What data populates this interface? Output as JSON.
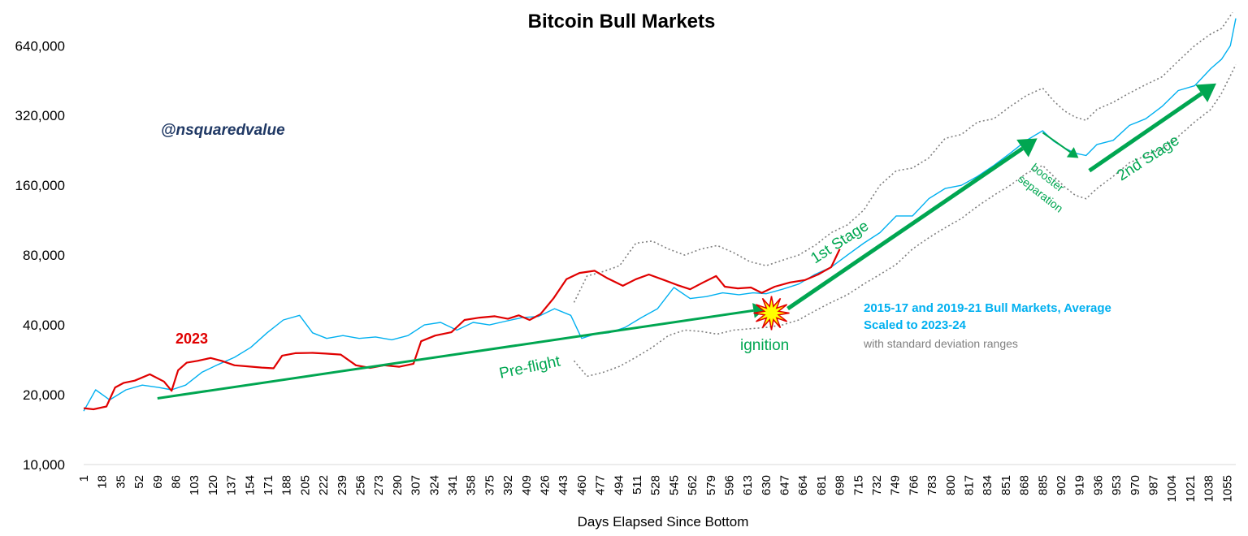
{
  "chart_data": {
    "type": "line",
    "title": "Bitcoin Bull Markets",
    "xlabel": "Days Elapsed Since Bottom",
    "ylabel": "",
    "yscale": "log2",
    "ylim": [
      10000,
      900000
    ],
    "xlim": [
      1,
      1063
    ],
    "y_ticks": [
      10000,
      20000,
      40000,
      80000,
      160000,
      320000,
      640000
    ],
    "y_tick_labels": [
      "10,000",
      "20,000",
      "40,000",
      "80,000",
      "160,000",
      "320,000",
      "640,000"
    ],
    "x_ticks": [
      1,
      18,
      35,
      52,
      69,
      86,
      103,
      120,
      137,
      154,
      171,
      188,
      205,
      222,
      239,
      256,
      273,
      290,
      307,
      324,
      341,
      358,
      375,
      392,
      409,
      426,
      443,
      460,
      477,
      494,
      511,
      528,
      545,
      562,
      579,
      596,
      613,
      630,
      647,
      664,
      681,
      698,
      715,
      732,
      749,
      766,
      783,
      800,
      817,
      834,
      851,
      868,
      885,
      902,
      919,
      936,
      953,
      970,
      987,
      1004,
      1021,
      1038,
      1055
    ],
    "series": [
      {
        "name": "2023",
        "color": "#e00000",
        "points": [
          [
            1,
            17500
          ],
          [
            10,
            17300
          ],
          [
            22,
            17800
          ],
          [
            30,
            21500
          ],
          [
            38,
            22500
          ],
          [
            48,
            23000
          ],
          [
            62,
            24500
          ],
          [
            75,
            22800
          ],
          [
            82,
            20800
          ],
          [
            88,
            25500
          ],
          [
            96,
            27500
          ],
          [
            106,
            28000
          ],
          [
            118,
            28800
          ],
          [
            128,
            28000
          ],
          [
            140,
            26800
          ],
          [
            152,
            26500
          ],
          [
            165,
            26200
          ],
          [
            176,
            26000
          ],
          [
            184,
            29500
          ],
          [
            196,
            30200
          ],
          [
            212,
            30300
          ],
          [
            224,
            30100
          ],
          [
            238,
            29800
          ],
          [
            252,
            26800
          ],
          [
            265,
            26100
          ],
          [
            278,
            26800
          ],
          [
            292,
            26400
          ],
          [
            305,
            27200
          ],
          [
            312,
            34000
          ],
          [
            325,
            36000
          ],
          [
            340,
            37200
          ],
          [
            352,
            42000
          ],
          [
            366,
            43000
          ],
          [
            380,
            43600
          ],
          [
            392,
            42500
          ],
          [
            402,
            44000
          ],
          [
            412,
            42000
          ],
          [
            422,
            44500
          ],
          [
            434,
            52000
          ],
          [
            446,
            63000
          ],
          [
            458,
            67000
          ],
          [
            472,
            68500
          ],
          [
            484,
            63500
          ],
          [
            498,
            59000
          ],
          [
            510,
            63000
          ],
          [
            522,
            66000
          ],
          [
            536,
            62500
          ],
          [
            548,
            59500
          ],
          [
            560,
            57000
          ],
          [
            572,
            61000
          ],
          [
            584,
            65000
          ],
          [
            592,
            58500
          ],
          [
            604,
            57500
          ],
          [
            616,
            58000
          ],
          [
            626,
            55000
          ],
          [
            638,
            58500
          ],
          [
            652,
            61000
          ],
          [
            666,
            62500
          ],
          [
            678,
            66000
          ],
          [
            690,
            71000
          ],
          [
            698,
            85000
          ]
        ]
      },
      {
        "name": "2015-17 and 2019-21 Bull Markets, Average Scaled to 2023-24",
        "color": "#00b0f0",
        "points": [
          [
            1,
            17000
          ],
          [
            12,
            21000
          ],
          [
            25,
            19000
          ],
          [
            40,
            21000
          ],
          [
            55,
            22000
          ],
          [
            70,
            21500
          ],
          [
            82,
            21000
          ],
          [
            95,
            22000
          ],
          [
            110,
            25000
          ],
          [
            125,
            27000
          ],
          [
            140,
            29000
          ],
          [
            155,
            32000
          ],
          [
            170,
            37000
          ],
          [
            185,
            42000
          ],
          [
            200,
            44000
          ],
          [
            212,
            37000
          ],
          [
            225,
            35000
          ],
          [
            240,
            36000
          ],
          [
            255,
            35000
          ],
          [
            270,
            35500
          ],
          [
            285,
            34500
          ],
          [
            300,
            36000
          ],
          [
            315,
            40000
          ],
          [
            330,
            41000
          ],
          [
            345,
            38000
          ],
          [
            360,
            41000
          ],
          [
            375,
            40000
          ],
          [
            390,
            41500
          ],
          [
            405,
            43000
          ],
          [
            420,
            43500
          ],
          [
            435,
            47000
          ],
          [
            450,
            44000
          ],
          [
            460,
            35000
          ],
          [
            472,
            36500
          ],
          [
            485,
            37000
          ],
          [
            500,
            39000
          ],
          [
            515,
            43000
          ],
          [
            530,
            47000
          ],
          [
            545,
            58000
          ],
          [
            560,
            52000
          ],
          [
            575,
            53000
          ],
          [
            590,
            55000
          ],
          [
            605,
            54000
          ],
          [
            618,
            55000
          ],
          [
            630,
            54500
          ],
          [
            645,
            57000
          ],
          [
            660,
            60000
          ],
          [
            675,
            66000
          ],
          [
            690,
            71000
          ],
          [
            705,
            80000
          ],
          [
            720,
            90000
          ],
          [
            735,
            100000
          ],
          [
            750,
            118000
          ],
          [
            765,
            118000
          ],
          [
            780,
            140000
          ],
          [
            795,
            155000
          ],
          [
            810,
            160000
          ],
          [
            825,
            175000
          ],
          [
            840,
            195000
          ],
          [
            855,
            220000
          ],
          [
            870,
            250000
          ],
          [
            885,
            275000
          ],
          [
            895,
            248000
          ],
          [
            905,
            232000
          ],
          [
            915,
            220000
          ],
          [
            925,
            215000
          ],
          [
            935,
            240000
          ],
          [
            950,
            250000
          ],
          [
            965,
            290000
          ],
          [
            980,
            310000
          ],
          [
            995,
            350000
          ],
          [
            1010,
            410000
          ],
          [
            1025,
            430000
          ],
          [
            1040,
            510000
          ],
          [
            1050,
            560000
          ],
          [
            1058,
            640000
          ],
          [
            1063,
            840000
          ]
        ]
      },
      {
        "name": "Upper standard deviation range",
        "color": "#7f7f7f",
        "dashed": true,
        "points": [
          [
            453,
            50000
          ],
          [
            465,
            65000
          ],
          [
            480,
            68000
          ],
          [
            495,
            72000
          ],
          [
            510,
            90000
          ],
          [
            525,
            92000
          ],
          [
            540,
            85000
          ],
          [
            555,
            80000
          ],
          [
            570,
            85000
          ],
          [
            585,
            88000
          ],
          [
            600,
            82000
          ],
          [
            615,
            75000
          ],
          [
            630,
            72000
          ],
          [
            645,
            76000
          ],
          [
            660,
            80000
          ],
          [
            675,
            88000
          ],
          [
            690,
            100000
          ],
          [
            705,
            108000
          ],
          [
            720,
            125000
          ],
          [
            735,
            160000
          ],
          [
            750,
            185000
          ],
          [
            765,
            190000
          ],
          [
            780,
            210000
          ],
          [
            795,
            255000
          ],
          [
            810,
            265000
          ],
          [
            825,
            300000
          ],
          [
            840,
            310000
          ],
          [
            855,
            350000
          ],
          [
            870,
            390000
          ],
          [
            885,
            420000
          ],
          [
            895,
            370000
          ],
          [
            905,
            335000
          ],
          [
            915,
            315000
          ],
          [
            925,
            305000
          ],
          [
            935,
            340000
          ],
          [
            950,
            365000
          ],
          [
            965,
            400000
          ],
          [
            980,
            435000
          ],
          [
            995,
            470000
          ],
          [
            1010,
            550000
          ],
          [
            1025,
            640000
          ],
          [
            1040,
            720000
          ],
          [
            1050,
            760000
          ],
          [
            1060,
            890000
          ]
        ]
      },
      {
        "name": "Lower standard deviation range",
        "color": "#7f7f7f",
        "dashed": true,
        "points": [
          [
            453,
            28000
          ],
          [
            465,
            24000
          ],
          [
            480,
            25000
          ],
          [
            495,
            26500
          ],
          [
            510,
            29000
          ],
          [
            525,
            32000
          ],
          [
            540,
            36000
          ],
          [
            555,
            38000
          ],
          [
            570,
            37500
          ],
          [
            585,
            36500
          ],
          [
            600,
            38000
          ],
          [
            615,
            38500
          ],
          [
            630,
            39000
          ],
          [
            645,
            40000
          ],
          [
            660,
            42000
          ],
          [
            675,
            46000
          ],
          [
            690,
            50000
          ],
          [
            705,
            54000
          ],
          [
            720,
            60000
          ],
          [
            735,
            66000
          ],
          [
            750,
            73000
          ],
          [
            765,
            85000
          ],
          [
            780,
            95000
          ],
          [
            795,
            105000
          ],
          [
            810,
            115000
          ],
          [
            825,
            130000
          ],
          [
            840,
            145000
          ],
          [
            855,
            160000
          ],
          [
            870,
            180000
          ],
          [
            885,
            195000
          ],
          [
            895,
            175000
          ],
          [
            905,
            158000
          ],
          [
            915,
            145000
          ],
          [
            925,
            140000
          ],
          [
            935,
            155000
          ],
          [
            950,
            175000
          ],
          [
            965,
            200000
          ],
          [
            980,
            215000
          ],
          [
            995,
            230000
          ],
          [
            1010,
            260000
          ],
          [
            1025,
            300000
          ],
          [
            1040,
            340000
          ],
          [
            1050,
            400000
          ],
          [
            1063,
            530000
          ]
        ]
      }
    ],
    "annotations": {
      "watermark": "@nsquaredvalue",
      "year_label": "2023",
      "preflight": "Pre-flight",
      "ignition": "ignition",
      "first_stage": "1st Stage",
      "booster": "booster",
      "separation": "separation",
      "second_stage": "2nd Stage",
      "legend_line1": "2015-17 and 2019-21 Bull Markets, Average",
      "legend_line2": "Scaled to 2023-24",
      "legend_line3": "with standard deviation ranges"
    },
    "arrows": [
      {
        "name": "pre-flight-arrow",
        "from": [
          69,
          19300
        ],
        "to": [
          630,
          47000
        ]
      },
      {
        "name": "first-stage-arrow",
        "from": [
          650,
          47000
        ],
        "to": [
          880,
          255000
        ]
      },
      {
        "name": "booster-separation-arrow",
        "from": [
          885,
          270000
        ],
        "to": [
          918,
          210000
        ]
      },
      {
        "name": "second-stage-arrow",
        "from": [
          928,
          185000
        ],
        "to": [
          1045,
          440000
        ]
      }
    ],
    "explosion": {
      "x": 635,
      "y": 45000
    },
    "colors": {
      "red": "#e00000",
      "blue": "#00b0f0",
      "gray": "#7f7f7f",
      "green": "#00a651",
      "explosion_fill": "#ffff00",
      "explosion_stroke": "#e00000"
    }
  }
}
